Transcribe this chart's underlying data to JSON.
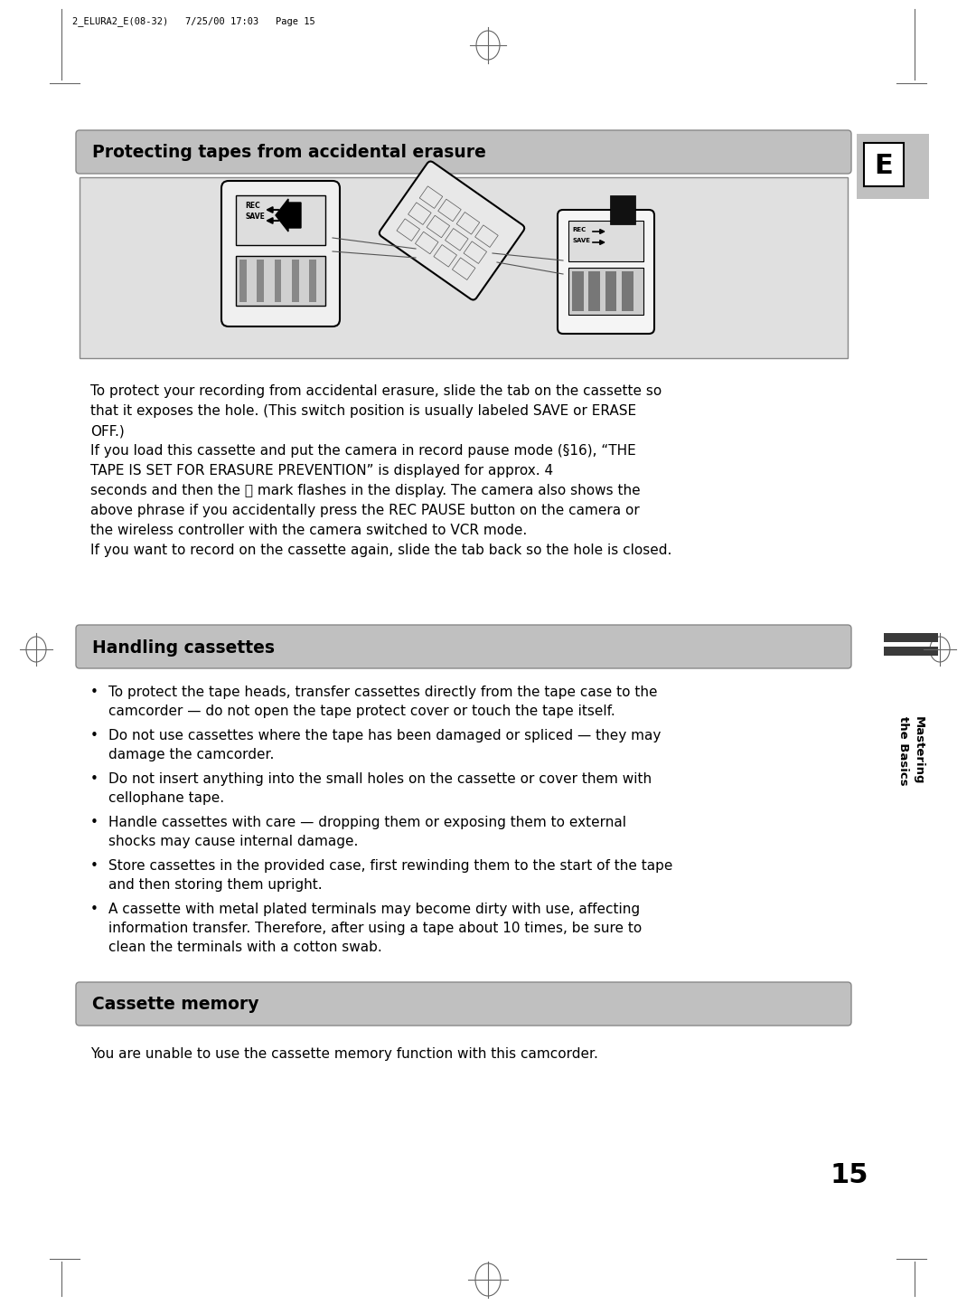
{
  "bg_color": "#ffffff",
  "page_header": "2_ELURA2_E(08-32)   7/25/00 17:03   Page 15",
  "section1_title": "Protecting tapes from accidental erasure",
  "body_para1_lines": [
    "To protect your recording from accidental erasure, slide the tab on the cassette so",
    "that it exposes the hole. (This switch position is usually labeled SAVE or ERASE",
    "OFF.)"
  ],
  "body_para2_lines": [
    "If you load this cassette and put the camera in record pause mode (§16), “THE",
    "TAPE IS SET FOR ERASURE PREVENTION” is displayed for approx. 4",
    "seconds and then the ⓡ mark flashes in the display. The camera also shows the",
    "above phrase if you accidentally press the REC PAUSE button on the camera or",
    "the wireless controller with the camera switched to VCR mode.",
    "If you want to record on the cassette again, slide the tab back so the hole is closed."
  ],
  "section2_title": "Handling cassettes",
  "section2_bullets": [
    [
      "To protect the tape heads, transfer cassettes directly from the tape case to the",
      "camcorder — do not open the tape protect cover or touch the tape itself."
    ],
    [
      "Do not use cassettes where the tape has been damaged or spliced — they may",
      "damage the camcorder."
    ],
    [
      "Do not insert anything into the small holes on the cassette or cover them with",
      "cellophane tape."
    ],
    [
      "Handle cassettes with care — dropping them or exposing them to external",
      "shocks may cause internal damage."
    ],
    [
      "Store cassettes in the provided case, first rewinding them to the start of the tape",
      "and then storing them upright."
    ],
    [
      "A cassette with metal plated terminals may become dirty with use, affecting",
      "information transfer. Therefore, after using a tape about 10 times, be sure to",
      "clean the terminals with a cotton swab."
    ]
  ],
  "section3_title": "Cassette memory",
  "section3_body": "You are unable to use the cassette memory function with this camcorder.",
  "page_number": "15",
  "tab_letter": "E",
  "section_bg": "#c0c0c0",
  "image_bg": "#e0e0e0",
  "sidebar_dark": "#3a3a3a",
  "body_font_size": 11.0,
  "section_font_size": 13.5
}
